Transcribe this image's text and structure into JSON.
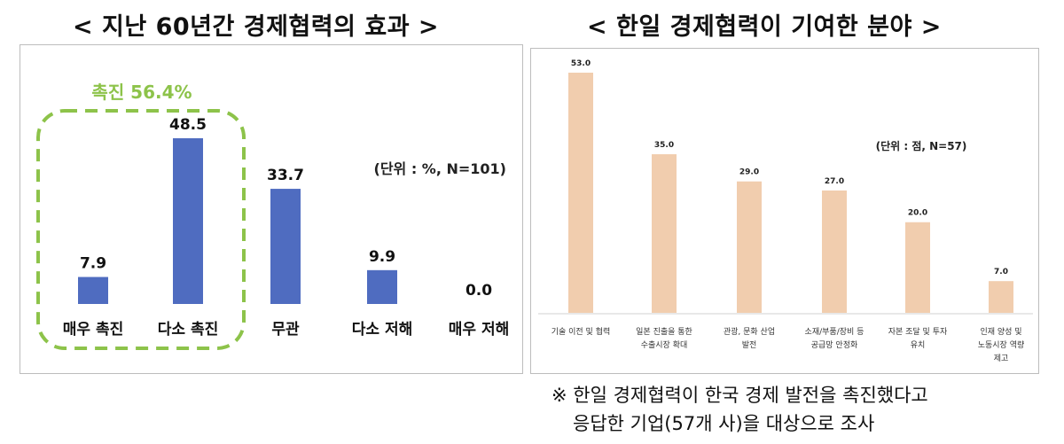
{
  "left_title": "< 지난 60년간 경제협력의 효과 >",
  "right_title": "< 한일 경제협력이 기여한 분야 >",
  "note": {
    "line1": "※ 한일 경제협력이 한국 경제 발전을 촉진했다고",
    "line2": "응답한 기업(57개 사)을 대상으로 조사"
  },
  "colors": {
    "left_bar": "#4f6cc0",
    "right_bar": "#f1cdae",
    "highlight": "#8dc34a"
  },
  "chart_data": [
    {
      "type": "bar",
      "categories": [
        "매우 촉진",
        "다소 촉진",
        "무관",
        "다소 저해",
        "매우 저해"
      ],
      "values": [
        7.9,
        48.5,
        33.7,
        9.9,
        0.0
      ],
      "value_labels": [
        "7.9",
        "48.5",
        "33.7",
        "9.9",
        "0.0"
      ],
      "unit_note": "(단위 : %, N=101)",
      "highlight": {
        "label": "촉진 56.4%",
        "categories": [
          "매우 촉진",
          "다소 촉진"
        ]
      },
      "ylim": [
        0,
        55
      ],
      "grid": false
    },
    {
      "type": "bar",
      "categories": [
        [
          "기술 이전 및 협력"
        ],
        [
          "일본 진출을 통한",
          "수출시장 확대"
        ],
        [
          "관광, 문화 산업",
          "발전"
        ],
        [
          "소재/부품/장비 등",
          "공급망 안정화"
        ],
        [
          "자본 조달 및 투자",
          "유치"
        ],
        [
          "인재 양성 및",
          "노동시장 역량",
          "제고"
        ]
      ],
      "values": [
        53.0,
        35.0,
        29.0,
        27.0,
        20.0,
        7.0
      ],
      "value_labels": [
        "53.0",
        "35.0",
        "29.0",
        "27.0",
        "20.0",
        "7.0"
      ],
      "unit_note": "(단위 : 점, N=57)",
      "ylim": [
        0,
        55
      ],
      "grid": false
    }
  ]
}
